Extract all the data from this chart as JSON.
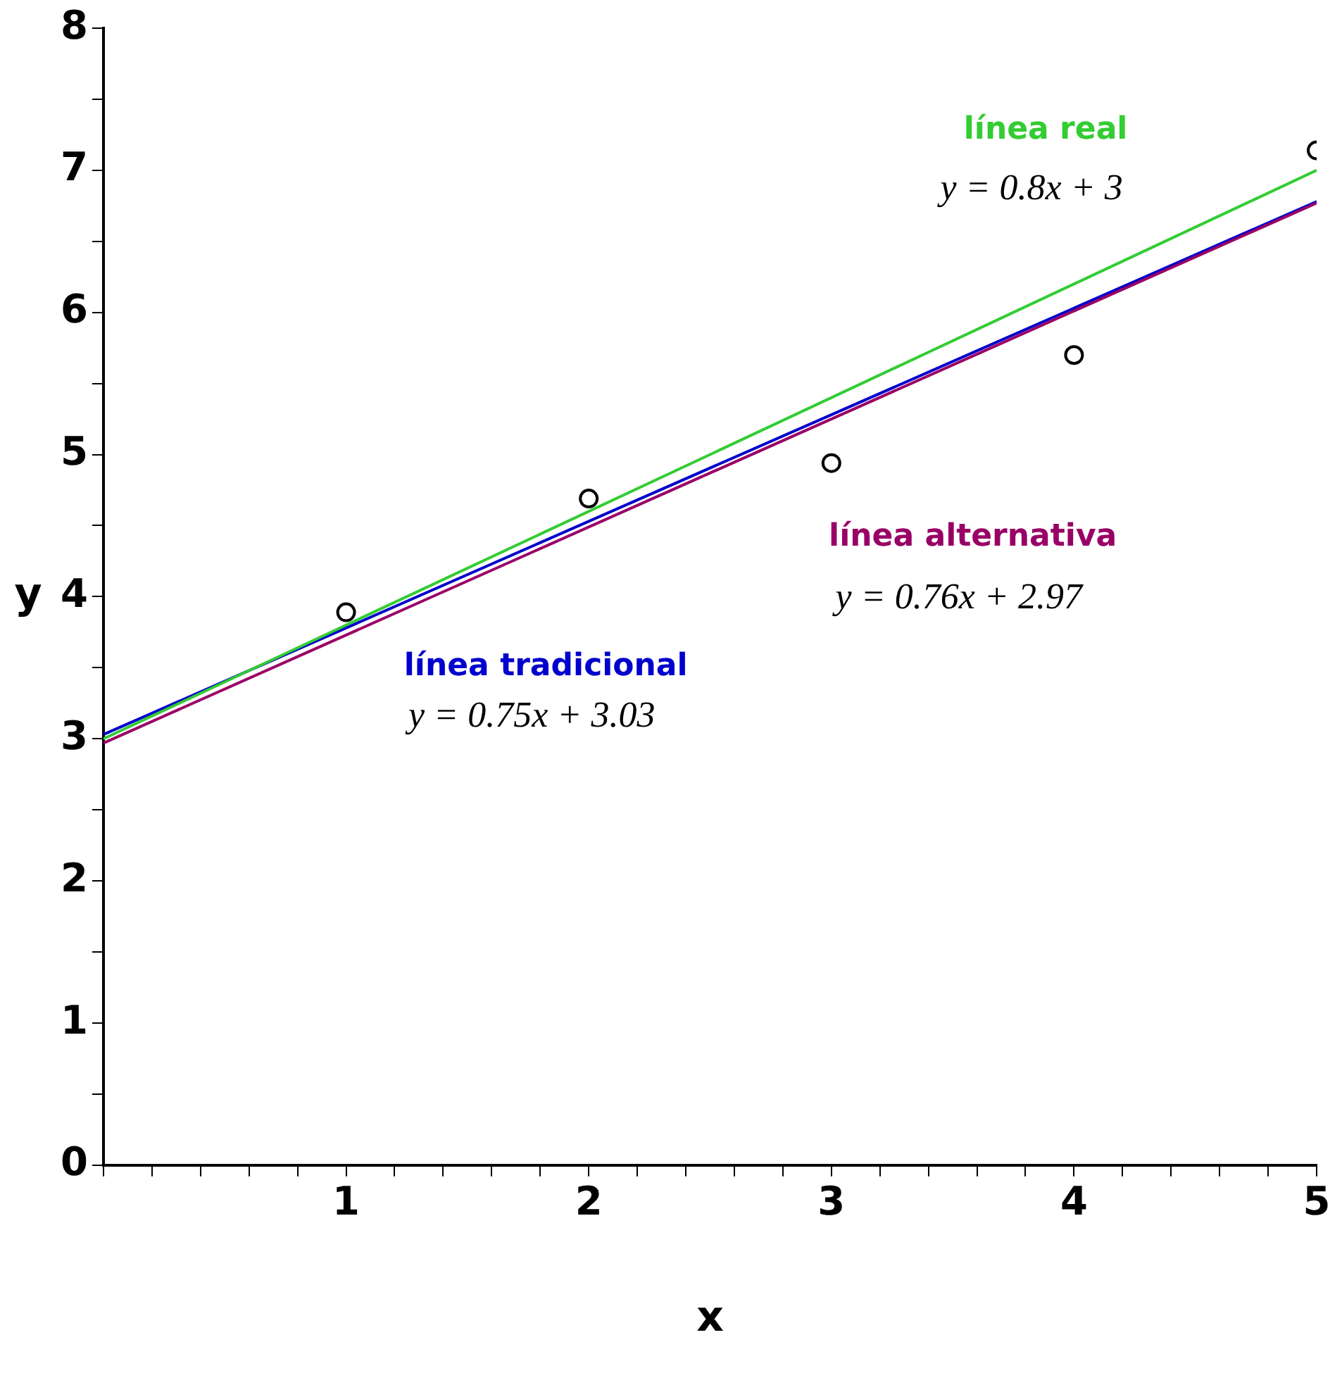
{
  "chart_data": {
    "type": "line",
    "xlabel": "x",
    "ylabel": "y",
    "xlim": [
      0,
      5
    ],
    "ylim": [
      0,
      8
    ],
    "xticks": [
      {
        "value": 0,
        "label": null
      },
      {
        "value": 0.2,
        "label": null
      },
      {
        "value": 0.4,
        "label": null
      },
      {
        "value": 0.6,
        "label": null
      },
      {
        "value": 0.8,
        "label": null
      },
      1,
      {
        "value": 1.2,
        "label": null
      },
      {
        "value": 1.4,
        "label": null
      },
      {
        "value": 1.6,
        "label": null
      },
      {
        "value": 1.8,
        "label": null
      },
      2,
      {
        "value": 2.2,
        "label": null
      },
      {
        "value": 2.4,
        "label": null
      },
      {
        "value": 2.6,
        "label": null
      },
      {
        "value": 2.8,
        "label": null
      },
      3,
      {
        "value": 3.2,
        "label": null
      },
      {
        "value": 3.4,
        "label": null
      },
      {
        "value": 3.6,
        "label": null
      },
      {
        "value": 3.8,
        "label": null
      },
      4,
      {
        "value": 4.2,
        "label": null
      },
      {
        "value": 4.4,
        "label": null
      },
      {
        "value": 4.6,
        "label": null
      },
      {
        "value": 4.8,
        "label": null
      },
      5
    ],
    "yticks": [
      0,
      {
        "value": 0.5,
        "label": null
      },
      1,
      {
        "value": 1.5,
        "label": null
      },
      2,
      {
        "value": 2.5,
        "label": null
      },
      3,
      {
        "value": 3.5,
        "label": null
      },
      4,
      {
        "value": 4.5,
        "label": null
      },
      5,
      {
        "value": 5.5,
        "label": null
      },
      6,
      {
        "value": 6.5,
        "label": null
      },
      7,
      {
        "value": 7.5,
        "label": null
      },
      8
    ],
    "grid": false,
    "legend": false,
    "series": [
      {
        "type": "scatter",
        "marker": "circle",
        "color": "#000000",
        "x": [
          1,
          2,
          3,
          4,
          5
        ],
        "values": [
          3.89,
          4.69,
          4.94,
          5.7,
          7.14
        ]
      },
      {
        "name": "línea real",
        "color": "#33cc33",
        "x": [
          0,
          5
        ],
        "values": [
          3,
          7
        ]
      },
      {
        "name": "línea alternativa",
        "color": "#990066",
        "x": [
          0,
          5
        ],
        "values": [
          2.97,
          6.77
        ]
      },
      {
        "name": "línea tradicional",
        "color": "#0000cc",
        "x": [
          0,
          5
        ],
        "values": [
          3.03,
          6.78
        ]
      }
    ],
    "annotations": [
      "y = 0.8x + 3",
      "y = 0.76x + 2.97",
      "y = 0.75x + 3.03"
    ]
  }
}
